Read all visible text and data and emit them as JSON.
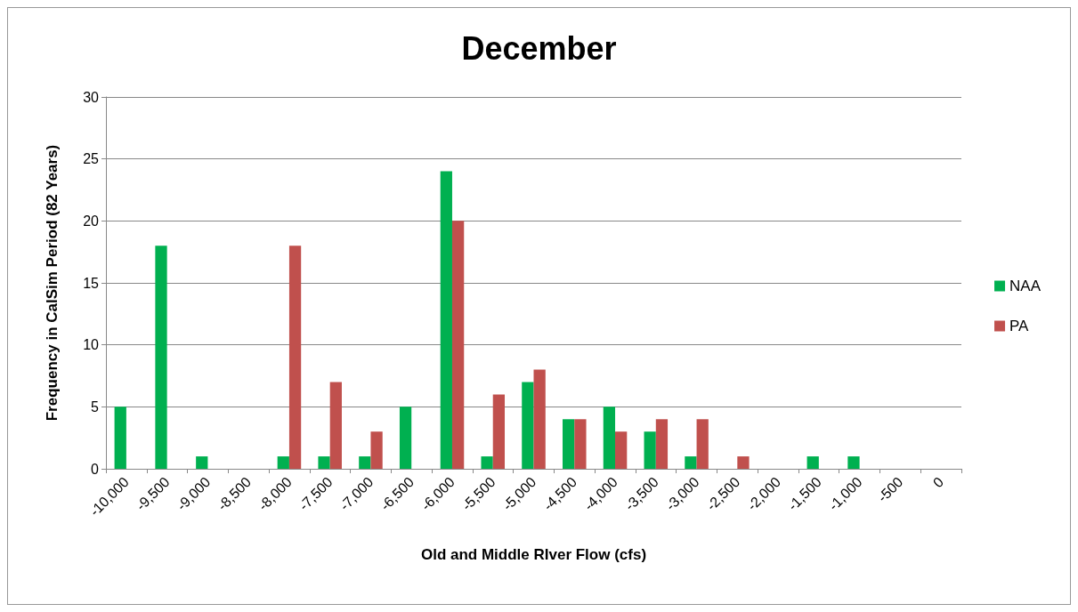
{
  "chart_data": {
    "type": "bar",
    "title": "December",
    "xlabel": "Old and Middle RIver Flow (cfs)",
    "ylabel": "Frequency in CalSim Period (82 Years)",
    "categories": [
      "-10,000",
      "-9,500",
      "-9,000",
      "-8,500",
      "-8,000",
      "-7,500",
      "-7,000",
      "-6,500",
      "-6,000",
      "-5,500",
      "-5,000",
      "-4,500",
      "-4,000",
      "-3,500",
      "-3,000",
      "-2,500",
      "-2,000",
      "-1,500",
      "-1,000",
      "-500",
      "0"
    ],
    "series": [
      {
        "name": "NAA",
        "color": "#00b050",
        "values": [
          5,
          18,
          1,
          0,
          1,
          1,
          1,
          5,
          24,
          1,
          7,
          4,
          5,
          3,
          1,
          0,
          0,
          1,
          1,
          0,
          0
        ]
      },
      {
        "name": "PA",
        "color": "#c0504d",
        "values": [
          0,
          0,
          0,
          0,
          18,
          7,
          3,
          0,
          20,
          6,
          8,
          4,
          3,
          4,
          4,
          1,
          0,
          0,
          0,
          0,
          0
        ]
      }
    ],
    "ylim": [
      0,
      30
    ],
    "yticks": [
      0,
      5,
      10,
      15,
      20,
      25,
      30
    ],
    "grid": "y",
    "legend": "right"
  }
}
